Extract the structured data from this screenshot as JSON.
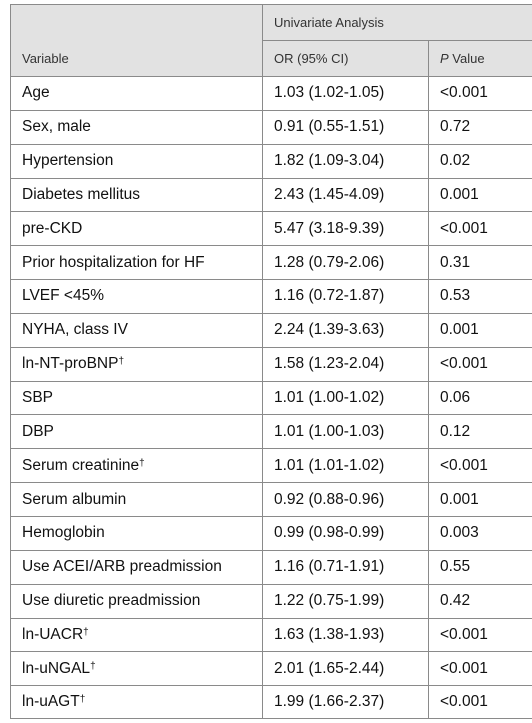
{
  "header": {
    "group_label": "Univariate Analysis",
    "col_variable": "Variable",
    "col_or": "OR (95% CI)",
    "col_p_italic": "P",
    "col_p_rest": " Value"
  },
  "rows": [
    {
      "variable": "Age",
      "sup": "",
      "or": "1.03 (1.02-1.05)",
      "p": "<0.001"
    },
    {
      "variable": "Sex, male",
      "sup": "",
      "or": "0.91 (0.55-1.51)",
      "p": "0.72"
    },
    {
      "variable": "Hypertension",
      "sup": "",
      "or": "1.82 (1.09-3.04)",
      "p": "0.02"
    },
    {
      "variable": "Diabetes mellitus",
      "sup": "",
      "or": "2.43 (1.45-4.09)",
      "p": "0.001"
    },
    {
      "variable": "pre-CKD",
      "sup": "",
      "or": "5.47 (3.18-9.39)",
      "p": "<0.001"
    },
    {
      "variable": "Prior hospitalization for HF",
      "sup": "",
      "or": "1.28 (0.79-2.06)",
      "p": "0.31"
    },
    {
      "variable": "LVEF <45%",
      "sup": "",
      "or": "1.16 (0.72-1.87)",
      "p": "0.53"
    },
    {
      "variable": "NYHA, class IV",
      "sup": "",
      "or": "2.24 (1.39-3.63)",
      "p": "0.001"
    },
    {
      "variable": "ln-NT-proBNP",
      "sup": "†",
      "or": "1.58 (1.23-2.04)",
      "p": "<0.001"
    },
    {
      "variable": "SBP",
      "sup": "",
      "or": "1.01 (1.00-1.02)",
      "p": "0.06"
    },
    {
      "variable": "DBP",
      "sup": "",
      "or": "1.01 (1.00-1.03)",
      "p": "0.12"
    },
    {
      "variable": "Serum creatinine",
      "sup": "†",
      "or": "1.01 (1.01-1.02)",
      "p": "<0.001"
    },
    {
      "variable": "Serum albumin",
      "sup": "",
      "or": "0.92 (0.88-0.96)",
      "p": "0.001"
    },
    {
      "variable": "Hemoglobin",
      "sup": "",
      "or": "0.99 (0.98-0.99)",
      "p": "0.003"
    },
    {
      "variable": "Use ACEI/ARB preadmission",
      "sup": "",
      "or": "1.16 (0.71-1.91)",
      "p": "0.55"
    },
    {
      "variable": "Use diuretic preadmission",
      "sup": "",
      "or": "1.22 (0.75-1.99)",
      "p": "0.42"
    },
    {
      "variable": "ln-UACR",
      "sup": "†",
      "or": "1.63 (1.38-1.93)",
      "p": "<0.001"
    },
    {
      "variable": "ln-uNGAL",
      "sup": "†",
      "or": "2.01 (1.65-2.44)",
      "p": "<0.001"
    },
    {
      "variable": "ln-uAGT",
      "sup": "†",
      "or": "1.99 (1.66-2.37)",
      "p": "<0.001"
    }
  ]
}
